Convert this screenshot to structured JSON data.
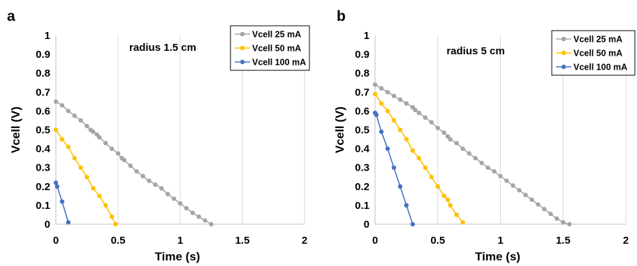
{
  "chart_data": [
    {
      "panel_label": "a",
      "type": "line",
      "annotation": "radius 1.5 cm",
      "xlabel": "Time (s)",
      "ylabel": "Vcell (V)",
      "xlim": [
        0,
        2
      ],
      "ylim": [
        0,
        1
      ],
      "xticks": [
        "0",
        "0.5",
        "1",
        "1.5",
        "2"
      ],
      "yticks": [
        "0",
        "0.1",
        "0.2",
        "0.3",
        "0.4",
        "0.5",
        "0.6",
        "0.7",
        "0.8",
        "0.9",
        "1"
      ],
      "grid": "vertical",
      "legend_position": "top-right",
      "series": [
        {
          "name": "Vcell 25 mA",
          "color": "#a5a5a5",
          "x": [
            0,
            0.05,
            0.1,
            0.15,
            0.2,
            0.25,
            0.28,
            0.3,
            0.33,
            0.35,
            0.4,
            0.45,
            0.5,
            0.53,
            0.55,
            0.6,
            0.65,
            0.7,
            0.75,
            0.8,
            0.85,
            0.9,
            0.95,
            1.0,
            1.05,
            1.1,
            1.15,
            1.2,
            1.25
          ],
          "y": [
            0.65,
            0.63,
            0.6,
            0.575,
            0.55,
            0.52,
            0.5,
            0.49,
            0.475,
            0.46,
            0.43,
            0.4,
            0.375,
            0.35,
            0.34,
            0.31,
            0.28,
            0.255,
            0.23,
            0.21,
            0.19,
            0.16,
            0.135,
            0.11,
            0.085,
            0.06,
            0.04,
            0.02,
            0.0
          ]
        },
        {
          "name": "Vcell 50 mA",
          "color": "#ffc000",
          "x": [
            0,
            0.05,
            0.1,
            0.15,
            0.2,
            0.25,
            0.3,
            0.35,
            0.4,
            0.45,
            0.48
          ],
          "y": [
            0.5,
            0.45,
            0.41,
            0.35,
            0.3,
            0.25,
            0.19,
            0.15,
            0.1,
            0.04,
            0.0
          ]
        },
        {
          "name": "Vcell 100 mA",
          "color": "#4472c4",
          "x": [
            0,
            0.01,
            0.05,
            0.1
          ],
          "y": [
            0.22,
            0.2,
            0.12,
            0.01
          ]
        }
      ]
    },
    {
      "panel_label": "b",
      "type": "line",
      "annotation": "radius 5 cm",
      "xlabel": "Time (s)",
      "ylabel": "Vcell (V)",
      "xlim": [
        0,
        2
      ],
      "ylim": [
        0,
        1
      ],
      "xticks": [
        "0",
        "0.5",
        "1",
        "1.5",
        "2"
      ],
      "yticks": [
        "0",
        "0.1",
        "0.2",
        "0.3",
        "0.4",
        "0.5",
        "0.6",
        "0.7",
        "0.8",
        "0.9",
        "1"
      ],
      "grid": "vertical",
      "legend_position": "top-right",
      "series": [
        {
          "name": "Vcell 25 mA",
          "color": "#a5a5a5",
          "x": [
            0,
            0.05,
            0.1,
            0.15,
            0.2,
            0.25,
            0.3,
            0.32,
            0.35,
            0.4,
            0.45,
            0.5,
            0.55,
            0.58,
            0.6,
            0.65,
            0.7,
            0.75,
            0.8,
            0.85,
            0.9,
            0.95,
            1.0,
            1.05,
            1.1,
            1.15,
            1.2,
            1.25,
            1.3,
            1.35,
            1.4,
            1.45,
            1.5,
            1.55
          ],
          "y": [
            0.74,
            0.72,
            0.7,
            0.68,
            0.66,
            0.64,
            0.62,
            0.605,
            0.59,
            0.565,
            0.54,
            0.51,
            0.485,
            0.465,
            0.45,
            0.43,
            0.4,
            0.375,
            0.35,
            0.325,
            0.3,
            0.28,
            0.255,
            0.23,
            0.205,
            0.18,
            0.155,
            0.13,
            0.105,
            0.08,
            0.055,
            0.03,
            0.01,
            0.0
          ]
        },
        {
          "name": "Vcell 50 mA",
          "color": "#ffc000",
          "x": [
            0,
            0.05,
            0.1,
            0.15,
            0.2,
            0.25,
            0.3,
            0.35,
            0.4,
            0.45,
            0.5,
            0.55,
            0.58,
            0.6,
            0.65,
            0.7
          ],
          "y": [
            0.69,
            0.64,
            0.6,
            0.55,
            0.5,
            0.45,
            0.39,
            0.35,
            0.3,
            0.25,
            0.2,
            0.15,
            0.13,
            0.1,
            0.05,
            0.01
          ]
        },
        {
          "name": "Vcell 100 mA",
          "color": "#4472c4",
          "x": [
            0,
            0.01,
            0.05,
            0.1,
            0.15,
            0.2,
            0.25,
            0.3
          ],
          "y": [
            0.59,
            0.58,
            0.49,
            0.4,
            0.3,
            0.2,
            0.1,
            0.0
          ]
        }
      ]
    }
  ]
}
